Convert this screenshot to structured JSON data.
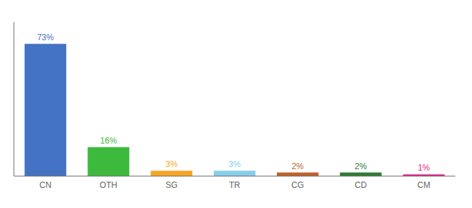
{
  "chart_data": {
    "type": "bar",
    "categories": [
      "CN",
      "OTH",
      "SG",
      "TR",
      "CG",
      "CD",
      "CM"
    ],
    "values": [
      73,
      16,
      3,
      3,
      2,
      2,
      1
    ],
    "value_labels": [
      "73%",
      "16%",
      "3%",
      "3%",
      "2%",
      "2%",
      "1%"
    ],
    "colors": [
      "#4472c4",
      "#3dba3d",
      "#f5a623",
      "#87ceeb",
      "#c0622b",
      "#2e7d32",
      "#e91e8c"
    ],
    "ylim": [
      0,
      85
    ],
    "data_labels": true,
    "tick_labels": "x",
    "grid": false
  }
}
